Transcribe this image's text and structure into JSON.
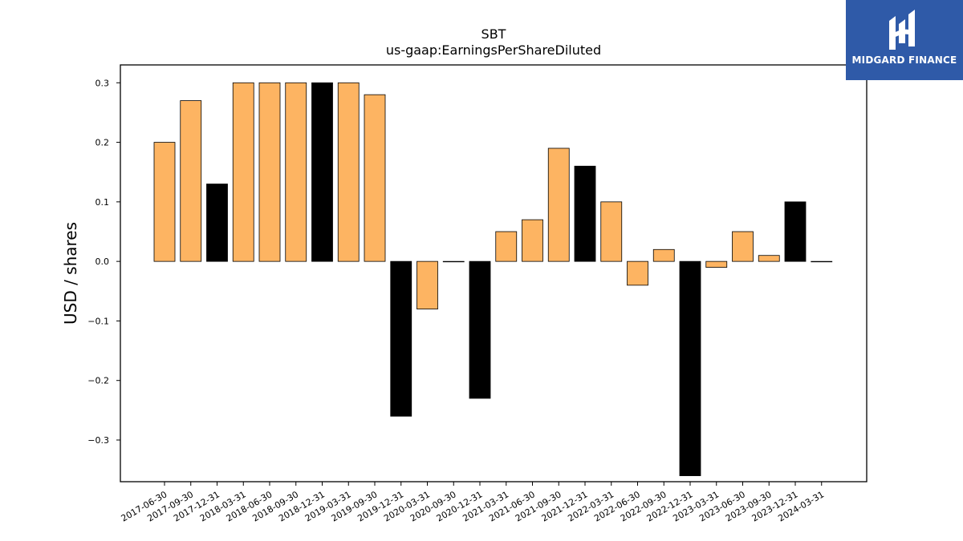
{
  "chart_data": {
    "type": "bar",
    "title": "SBT",
    "subtitle": "us-gaap:EarningsPerShareDiluted",
    "ylabel": "USD / shares",
    "xlabel": "",
    "ylim": [
      -0.37,
      0.33
    ],
    "yticks": [
      0.3,
      0.2,
      0.1,
      0.0,
      -0.1,
      -0.2,
      -0.3
    ],
    "ytick_labels": [
      "0.3",
      "0.2",
      "0.1",
      "0.0",
      "−0.1",
      "−0.2",
      "−0.3"
    ],
    "grid": false,
    "categories": [
      "2017-06-30",
      "2017-09-30",
      "2017-12-31",
      "2018-03-31",
      "2018-06-30",
      "2018-09-30",
      "2018-12-31",
      "2019-03-31",
      "2019-09-30",
      "2019-12-31",
      "2020-03-31",
      "2020-09-30",
      "2020-12-31",
      "2021-03-31",
      "2021-06-30",
      "2021-09-30",
      "2021-12-31",
      "2022-03-31",
      "2022-06-30",
      "2022-09-30",
      "2022-12-31",
      "2023-03-31",
      "2023-06-30",
      "2023-09-30",
      "2023-12-31",
      "2024-03-31"
    ],
    "values": [
      0.2,
      0.27,
      0.13,
      0.3,
      0.3,
      0.3,
      0.3,
      0.3,
      0.28,
      -0.26,
      -0.08,
      0.0,
      -0.23,
      0.05,
      0.07,
      0.19,
      0.16,
      0.1,
      -0.04,
      0.02,
      -0.36,
      -0.01,
      0.05,
      0.01,
      0.1,
      0.0
    ],
    "bar_colors": [
      "#fdb462",
      "#fdb462",
      "#000000",
      "#fdb462",
      "#fdb462",
      "#fdb462",
      "#000000",
      "#fdb462",
      "#fdb462",
      "#000000",
      "#fdb462",
      "#fdb462",
      "#000000",
      "#fdb462",
      "#fdb462",
      "#fdb462",
      "#000000",
      "#fdb462",
      "#fdb462",
      "#fdb462",
      "#000000",
      "#fdb462",
      "#fdb462",
      "#fdb462",
      "#000000",
      "#fdb462"
    ]
  },
  "logo": {
    "text": "MIDGARD FINANCE",
    "background": "#2f5aa8"
  }
}
